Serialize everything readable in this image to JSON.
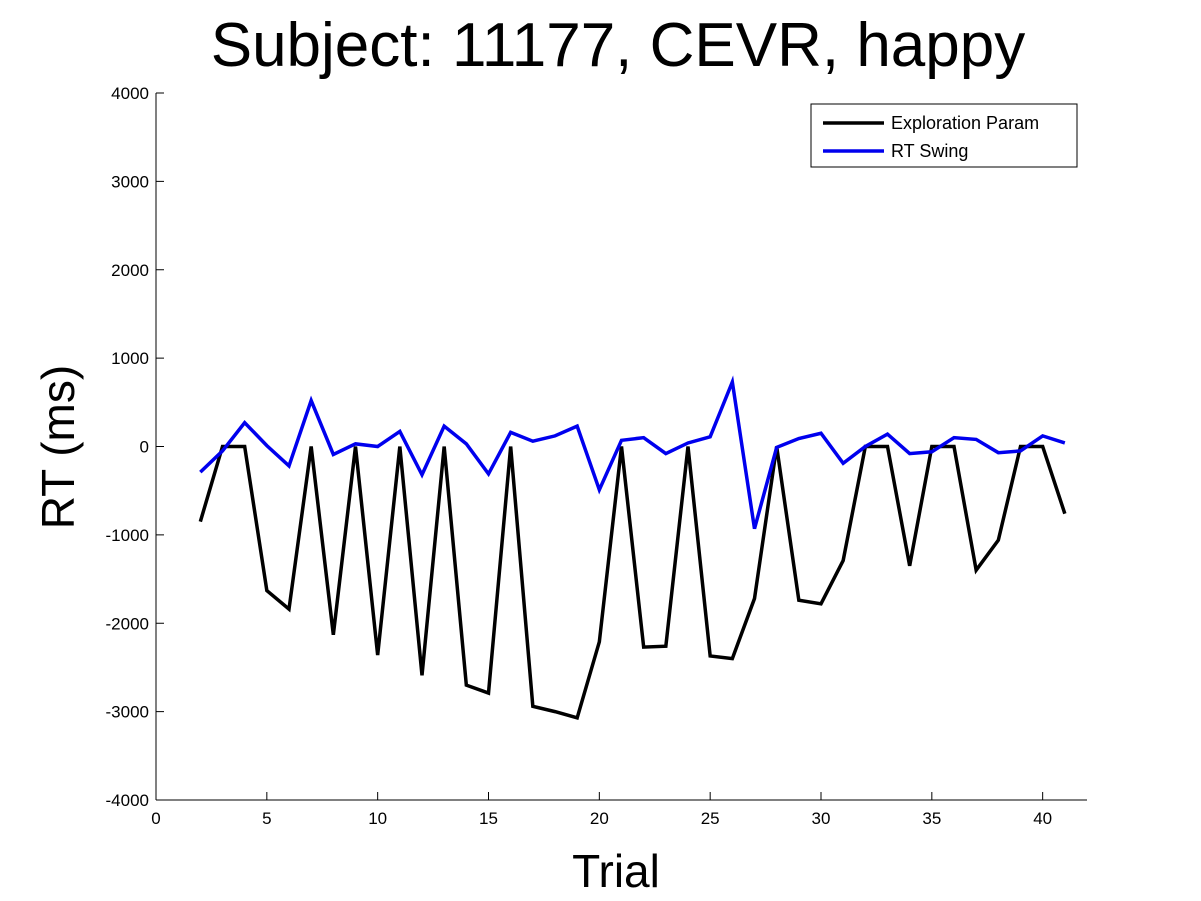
{
  "chart_data": {
    "type": "line",
    "title": "Subject: 11177, CEVR, happy",
    "xlabel": "Trial",
    "ylabel": "RT (ms)",
    "xlim": [
      0,
      42
    ],
    "ylim": [
      -4000,
      4000
    ],
    "xticks": [
      0,
      5,
      10,
      15,
      20,
      25,
      30,
      35,
      40
    ],
    "yticks": [
      -4000,
      -3000,
      -2000,
      -1000,
      0,
      1000,
      2000,
      3000,
      4000
    ],
    "grid": false,
    "legend_position": "top-right",
    "x": [
      2,
      3,
      4,
      5,
      6,
      7,
      8,
      9,
      10,
      11,
      12,
      13,
      14,
      15,
      16,
      17,
      18,
      19,
      20,
      21,
      22,
      23,
      24,
      25,
      26,
      27,
      28,
      29,
      30,
      31,
      32,
      33,
      34,
      35,
      36,
      37,
      38,
      39,
      40,
      41
    ],
    "series": [
      {
        "name": "Exploration Param",
        "color": "#000000",
        "values": [
          -850,
          0,
          0,
          -1630,
          -1840,
          0,
          -2130,
          0,
          -2360,
          0,
          -2590,
          0,
          -2700,
          -2790,
          0,
          -2940,
          -3000,
          -3070,
          -2210,
          0,
          -2270,
          -2260,
          0,
          -2370,
          -2400,
          -1720,
          0,
          -1740,
          -1780,
          -1290,
          0,
          0,
          -1350,
          0,
          0,
          -1400,
          -1060,
          0,
          0,
          -760
        ]
      },
      {
        "name": "RT Swing",
        "color": "#0000ee",
        "values": [
          -290,
          -50,
          270,
          10,
          -220,
          520,
          -90,
          30,
          0,
          170,
          -320,
          230,
          30,
          -310,
          160,
          60,
          120,
          230,
          -490,
          70,
          100,
          -80,
          40,
          110,
          730,
          -930,
          -10,
          90,
          150,
          -190,
          0,
          140,
          -80,
          -60,
          100,
          80,
          -70,
          -50,
          120,
          40
        ]
      }
    ]
  }
}
